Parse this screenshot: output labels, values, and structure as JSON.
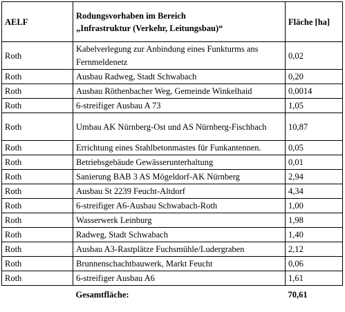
{
  "table": {
    "headers": {
      "aelf": "AELF",
      "project_line1": "Rodungsvorhaben im Bereich",
      "project_line2": "„Infrastruktur (Verkehr, Leitungsbau)“",
      "area": "Fläche [ha]"
    },
    "rows": [
      {
        "aelf": "Roth",
        "project": "Kabelverlegung zur Anbindung eines Funkturms ans Fernmeldenetz",
        "area": "0,02"
      },
      {
        "aelf": "Roth",
        "project": "Ausbau Radweg, Stadt Schwabach",
        "area": "0,20"
      },
      {
        "aelf": "Roth",
        "project": "Ausbau Röthenbacher Weg, Gemeinde Winkelhaid",
        "area": "0,0014"
      },
      {
        "aelf": "Roth",
        "project": "6-streifiger Ausbau A 73",
        "area": "1,05"
      },
      {
        "aelf": "Roth",
        "project": "Umbau AK Nürnberg-Ost und AS Nürnberg-Fischbach",
        "area": "10,87"
      },
      {
        "aelf": "Roth",
        "project": "Errichtung eines Stahlbetonmastes für Funkantennen.",
        "area": "0,05"
      },
      {
        "aelf": "Roth",
        "project": "Betriebsgebäude Gewässerunterhaltung",
        "area": "0,01"
      },
      {
        "aelf": "Roth",
        "project": "Sanierung BAB 3 AS Mögeldorf-AK Nürnberg",
        "area": "2,94"
      },
      {
        "aelf": "Roth",
        "project": "Ausbau St 2239 Feucht-Altdorf",
        "area": "4,34"
      },
      {
        "aelf": "Roth",
        "project": "6-streifiger A6-Ausbau Schwabach-Roth",
        "area": "1,00"
      },
      {
        "aelf": "Roth",
        "project": "Wasserwerk Leinburg",
        "area": "1,98"
      },
      {
        "aelf": "Roth",
        "project": "Radweg, Stadt Schwabach",
        "area": "1,40"
      },
      {
        "aelf": "Roth",
        "project": "Ausbau A3-Rastplätze Fuchsmühle/Ludergraben",
        "area": "2,12"
      },
      {
        "aelf": "Roth",
        "project": "Brunnenschachtbauwerk, Markt Feucht",
        "area": "0,06"
      },
      {
        "aelf": "Roth",
        "project": "6-streifiger Ausbau A6",
        "area": "1,61"
      }
    ],
    "total_label": "Gesamtfläche:",
    "total_value": "70,61"
  }
}
